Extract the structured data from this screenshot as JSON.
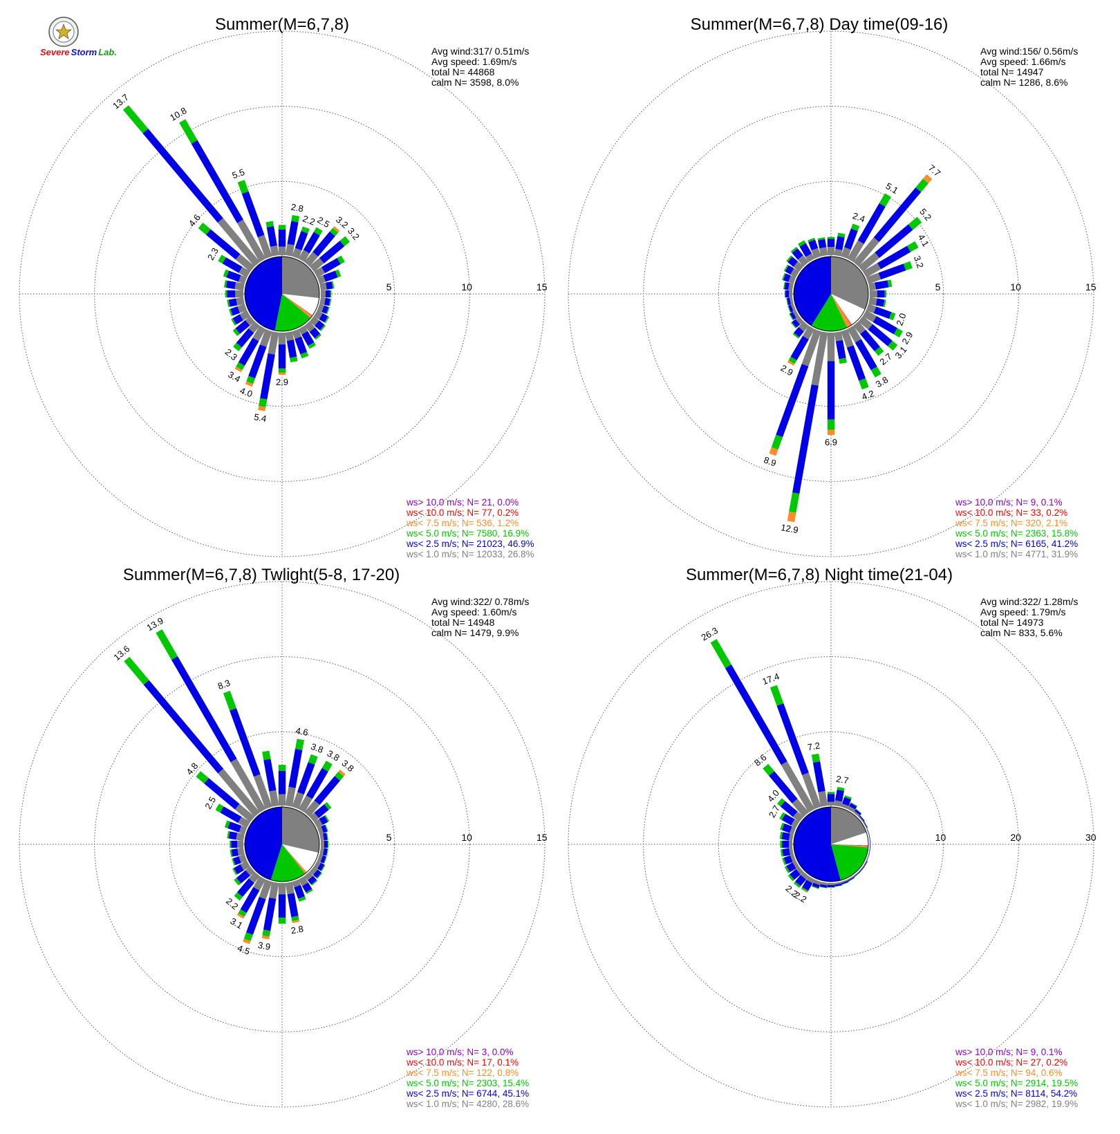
{
  "logo": {
    "word1": "Severe",
    "word2": "Storm",
    "word3": "Lab.",
    "color_red": "#e01010",
    "color_blue": "#1010d0",
    "color_green": "#1a9a1a"
  },
  "palette": {
    "purple": "#8a00c8",
    "red": "#ff0000",
    "orange": "#ff8c2a",
    "green": "#00c800",
    "blue": "#0000e6",
    "gray": "#808080"
  },
  "chart_data": [
    {
      "type": "wind-rose",
      "title": "Summer(M=6,7,8)",
      "rings": [
        5,
        10,
        15
      ],
      "ring_labels": [
        "5",
        "10",
        "15"
      ],
      "stats": [
        "Avg wind:317/ 0.51m/s",
        "Avg speed: 1.69m/s",
        "total N=       44868",
        "calm N=   3598,   8.0%"
      ],
      "pie": [
        {
          "class": "gray",
          "value": 26.8
        },
        {
          "class": "white",
          "value": 8.0
        },
        {
          "class": "purple",
          "value": 0.0
        },
        {
          "class": "red",
          "value": 0.2
        },
        {
          "class": "orange",
          "value": 1.2
        },
        {
          "class": "green",
          "value": 16.9
        },
        {
          "class": "blue",
          "value": 46.9
        }
      ],
      "bars": [
        {
          "dir": 0,
          "total": 2.1
        },
        {
          "dir": 10,
          "total": 2.8,
          "label": "2.8"
        },
        {
          "dir": 20,
          "total": 2.2,
          "label": "2.2"
        },
        {
          "dir": 30,
          "total": 2.5,
          "label": "2.5"
        },
        {
          "dir": 40,
          "total": 3.2,
          "label": "3.2"
        },
        {
          "dir": 50,
          "total": 3.2,
          "label": "3.2"
        },
        {
          "dir": 60,
          "total": 2.2
        },
        {
          "dir": 70,
          "total": 1.6
        },
        {
          "dir": 80,
          "total": 1.0
        },
        {
          "dir": 90,
          "total": 0.8
        },
        {
          "dir": 100,
          "total": 0.8
        },
        {
          "dir": 110,
          "total": 0.8
        },
        {
          "dir": 120,
          "total": 1.0
        },
        {
          "dir": 130,
          "total": 1.1
        },
        {
          "dir": 140,
          "total": 1.3
        },
        {
          "dir": 150,
          "total": 1.6
        },
        {
          "dir": 160,
          "total": 2.0
        },
        {
          "dir": 170,
          "total": 2.1
        },
        {
          "dir": 180,
          "total": 2.9,
          "label": "2.9"
        },
        {
          "dir": 190,
          "total": 5.4,
          "label": "5.4"
        },
        {
          "dir": 200,
          "total": 4.0,
          "label": "4.0"
        },
        {
          "dir": 210,
          "total": 3.4,
          "label": "3.4"
        },
        {
          "dir": 220,
          "total": 2.3,
          "label": "2.3"
        },
        {
          "dir": 230,
          "total": 1.6
        },
        {
          "dir": 240,
          "total": 1.3
        },
        {
          "dir": 250,
          "total": 1.2
        },
        {
          "dir": 260,
          "total": 1.2
        },
        {
          "dir": 270,
          "total": 1.3
        },
        {
          "dir": 280,
          "total": 1.4
        },
        {
          "dir": 290,
          "total": 1.6
        },
        {
          "dir": 300,
          "total": 2.3,
          "label": "2.3"
        },
        {
          "dir": 310,
          "total": 4.6,
          "label": "4.6"
        },
        {
          "dir": 320,
          "total": 13.7,
          "label": "13.7"
        },
        {
          "dir": 330,
          "total": 10.8,
          "label": "10.8"
        },
        {
          "dir": 340,
          "total": 5.5,
          "label": "5.5"
        },
        {
          "dir": 350,
          "total": 2.4
        }
      ],
      "legend": [
        {
          "color": "purple",
          "text": "ws> 10.0 m/s; N=    21,  0.0%"
        },
        {
          "color": "red",
          "text": "ws< 10.0 m/s; N=    77,  0.2%"
        },
        {
          "color": "orange",
          "text": "ws<  7.5 m/s; N=   536,  1.2%"
        },
        {
          "color": "green",
          "text": "ws<  5.0 m/s; N=  7580, 16.9%"
        },
        {
          "color": "blue",
          "text": "ws<  2.5 m/s; N= 21023, 46.9%"
        },
        {
          "color": "gray",
          "text": "ws<  1.0 m/s; N= 12033, 26.8%"
        }
      ]
    },
    {
      "type": "wind-rose",
      "title": "Summer(M=6,7,8) Day time(09-16)",
      "rings": [
        5,
        10,
        15
      ],
      "ring_labels": [
        "5",
        "10",
        "15"
      ],
      "stats": [
        "Avg wind:156/ 0.56m/s",
        "Avg speed: 1.66m/s",
        "total N=       14947",
        "calm N=   1286,   8.6%"
      ],
      "pie": [
        {
          "class": "gray",
          "value": 31.9
        },
        {
          "class": "white",
          "value": 8.6
        },
        {
          "class": "purple",
          "value": 0.1
        },
        {
          "class": "red",
          "value": 0.2
        },
        {
          "class": "orange",
          "value": 2.1
        },
        {
          "class": "green",
          "value": 15.8
        },
        {
          "class": "blue",
          "value": 41.2
        }
      ],
      "bars": [
        {
          "dir": 0,
          "total": 1.3
        },
        {
          "dir": 10,
          "total": 1.6
        },
        {
          "dir": 20,
          "total": 2.4,
          "label": "2.4"
        },
        {
          "dir": 30,
          "total": 5.1,
          "label": "5.1"
        },
        {
          "dir": 40,
          "total": 7.7,
          "label": "7.7"
        },
        {
          "dir": 50,
          "total": 5.2,
          "label": "5.2"
        },
        {
          "dir": 60,
          "total": 4.1,
          "label": "4.1"
        },
        {
          "dir": 70,
          "total": 3.2,
          "label": "3.2"
        },
        {
          "dir": 80,
          "total": 1.6
        },
        {
          "dir": 90,
          "total": 1.2
        },
        {
          "dir": 100,
          "total": 1.2
        },
        {
          "dir": 110,
          "total": 2.0,
          "label": "2.0"
        },
        {
          "dir": 120,
          "total": 2.9,
          "label": "2.9"
        },
        {
          "dir": 130,
          "total": 3.1,
          "label": "3.1"
        },
        {
          "dir": 140,
          "total": 2.7,
          "label": "2.7"
        },
        {
          "dir": 150,
          "total": 3.8,
          "label": "3.8"
        },
        {
          "dir": 160,
          "total": 4.2,
          "label": "4.2"
        },
        {
          "dir": 170,
          "total": 2.2
        },
        {
          "dir": 180,
          "total": 6.9,
          "label": "6.9"
        },
        {
          "dir": 190,
          "total": 12.9,
          "label": "12.9"
        },
        {
          "dir": 200,
          "total": 8.9,
          "label": "8.9"
        },
        {
          "dir": 210,
          "total": 2.9,
          "label": "2.9"
        },
        {
          "dir": 220,
          "total": 1.2
        },
        {
          "dir": 230,
          "total": 0.8
        },
        {
          "dir": 240,
          "total": 0.6
        },
        {
          "dir": 250,
          "total": 0.5
        },
        {
          "dir": 260,
          "total": 0.5
        },
        {
          "dir": 270,
          "total": 0.6
        },
        {
          "dir": 280,
          "total": 0.7
        },
        {
          "dir": 290,
          "total": 0.9
        },
        {
          "dir": 300,
          "total": 1.0
        },
        {
          "dir": 310,
          "total": 1.2
        },
        {
          "dir": 320,
          "total": 1.4
        },
        {
          "dir": 330,
          "total": 1.5
        },
        {
          "dir": 340,
          "total": 1.4
        },
        {
          "dir": 350,
          "total": 1.3
        }
      ],
      "legend": [
        {
          "color": "purple",
          "text": "ws> 10.0 m/s; N=     9,  0.1%"
        },
        {
          "color": "red",
          "text": "ws< 10.0 m/s; N=    33,  0.2%"
        },
        {
          "color": "orange",
          "text": "ws<  7.5 m/s; N=   320,  2.1%"
        },
        {
          "color": "green",
          "text": "ws<  5.0 m/s; N=  2363, 15.8%"
        },
        {
          "color": "blue",
          "text": "ws<  2.5 m/s; N=  6165, 41.2%"
        },
        {
          "color": "gray",
          "text": "ws<  1.0 m/s; N=  4771, 31.9%"
        }
      ]
    },
    {
      "type": "wind-rose",
      "title": "Summer(M=6,7,8) Twlight(5-8, 17-20)",
      "rings": [
        5,
        10,
        15
      ],
      "ring_labels": [
        "5",
        "10",
        "15"
      ],
      "stats": [
        "Avg wind:322/ 0.78m/s",
        "Avg speed: 1.60m/s",
        "total N=       14948",
        "calm N=   1479,   9.9%"
      ],
      "pie": [
        {
          "class": "gray",
          "value": 28.6
        },
        {
          "class": "white",
          "value": 9.9
        },
        {
          "class": "purple",
          "value": 0.0
        },
        {
          "class": "red",
          "value": 0.1
        },
        {
          "class": "orange",
          "value": 0.8
        },
        {
          "class": "green",
          "value": 15.4
        },
        {
          "class": "blue",
          "value": 45.1
        }
      ],
      "bars": [
        {
          "dir": 0,
          "total": 2.8
        },
        {
          "dir": 10,
          "total": 4.6,
          "label": "4.6"
        },
        {
          "dir": 20,
          "total": 3.8,
          "label": "3.8"
        },
        {
          "dir": 30,
          "total": 3.8,
          "label": "3.8"
        },
        {
          "dir": 40,
          "total": 3.8,
          "label": "3.8"
        },
        {
          "dir": 50,
          "total": 1.6
        },
        {
          "dir": 60,
          "total": 1.0
        },
        {
          "dir": 70,
          "total": 0.7
        },
        {
          "dir": 80,
          "total": 0.6
        },
        {
          "dir": 90,
          "total": 0.6
        },
        {
          "dir": 100,
          "total": 0.6
        },
        {
          "dir": 110,
          "total": 0.6
        },
        {
          "dir": 120,
          "total": 0.7
        },
        {
          "dir": 130,
          "total": 0.8
        },
        {
          "dir": 140,
          "total": 0.9
        },
        {
          "dir": 150,
          "total": 1.2
        },
        {
          "dir": 160,
          "total": 1.5
        },
        {
          "dir": 170,
          "total": 2.8,
          "label": "2.8"
        },
        {
          "dir": 180,
          "total": 2.8
        },
        {
          "dir": 190,
          "total": 3.9,
          "label": "3.9"
        },
        {
          "dir": 200,
          "total": 4.5,
          "label": "4.5"
        },
        {
          "dir": 210,
          "total": 3.1,
          "label": "3.1"
        },
        {
          "dir": 220,
          "total": 2.2,
          "label": "2.2"
        },
        {
          "dir": 230,
          "total": 1.5
        },
        {
          "dir": 240,
          "total": 1.2
        },
        {
          "dir": 250,
          "total": 1.0
        },
        {
          "dir": 260,
          "total": 1.0
        },
        {
          "dir": 270,
          "total": 1.0
        },
        {
          "dir": 280,
          "total": 1.2
        },
        {
          "dir": 290,
          "total": 1.5
        },
        {
          "dir": 300,
          "total": 2.5,
          "label": "2.5"
        },
        {
          "dir": 310,
          "total": 4.8,
          "label": "4.8"
        },
        {
          "dir": 320,
          "total": 13.6,
          "label": "13.6"
        },
        {
          "dir": 330,
          "total": 13.9,
          "label": "13.9"
        },
        {
          "dir": 340,
          "total": 8.3,
          "label": "8.3"
        },
        {
          "dir": 350,
          "total": 3.8
        }
      ],
      "legend": [
        {
          "color": "purple",
          "text": "ws> 10.0 m/s; N=     3,  0.0%"
        },
        {
          "color": "red",
          "text": "ws< 10.0 m/s; N=    17,  0.1%"
        },
        {
          "color": "orange",
          "text": "ws<  7.5 m/s; N=   122,  0.8%"
        },
        {
          "color": "green",
          "text": "ws<  5.0 m/s; N=  2303, 15.4%"
        },
        {
          "color": "blue",
          "text": "ws<  2.5 m/s; N=  6744, 45.1%"
        },
        {
          "color": "gray",
          "text": "ws<  1.0 m/s; N=  4280, 28.6%"
        }
      ]
    },
    {
      "type": "wind-rose",
      "title": "Summer(M=6,7,8) Night time(21-04)",
      "rings": [
        10,
        20,
        30
      ],
      "ring_labels": [
        "10",
        "20",
        "30"
      ],
      "stats": [
        "Avg wind:322/ 1.28m/s",
        "Avg speed: 1.79m/s",
        "total N=       14973",
        "calm N=    833,   5.6%"
      ],
      "pie": [
        {
          "class": "gray",
          "value": 19.9
        },
        {
          "class": "white",
          "value": 5.6
        },
        {
          "class": "purple",
          "value": 0.1
        },
        {
          "class": "red",
          "value": 0.2
        },
        {
          "class": "orange",
          "value": 0.6
        },
        {
          "class": "green",
          "value": 19.5
        },
        {
          "class": "blue",
          "value": 54.2
        }
      ],
      "bars": [
        {
          "dir": 0,
          "total": 2.0
        },
        {
          "dir": 10,
          "total": 2.7,
          "label": "2.7"
        },
        {
          "dir": 20,
          "total": 1.8
        },
        {
          "dir": 30,
          "total": 1.2
        },
        {
          "dir": 40,
          "total": 0.8
        },
        {
          "dir": 50,
          "total": 0.5
        },
        {
          "dir": 60,
          "total": 0.4
        },
        {
          "dir": 70,
          "total": 0.3
        },
        {
          "dir": 80,
          "total": 0.3
        },
        {
          "dir": 90,
          "total": 0.3
        },
        {
          "dir": 100,
          "total": 0.3
        },
        {
          "dir": 110,
          "total": 0.3
        },
        {
          "dir": 120,
          "total": 0.4
        },
        {
          "dir": 130,
          "total": 0.4
        },
        {
          "dir": 140,
          "total": 0.4
        },
        {
          "dir": 150,
          "total": 0.5
        },
        {
          "dir": 160,
          "total": 0.6
        },
        {
          "dir": 170,
          "total": 0.7
        },
        {
          "dir": 180,
          "total": 0.8
        },
        {
          "dir": 190,
          "total": 0.9
        },
        {
          "dir": 200,
          "total": 1.2
        },
        {
          "dir": 210,
          "total": 2.2,
          "label": "2.2"
        },
        {
          "dir": 220,
          "total": 2.2,
          "label": "2.2"
        },
        {
          "dir": 230,
          "total": 2.1
        },
        {
          "dir": 240,
          "total": 1.9
        },
        {
          "dir": 250,
          "total": 1.8
        },
        {
          "dir": 260,
          "total": 1.8
        },
        {
          "dir": 270,
          "total": 1.8
        },
        {
          "dir": 280,
          "total": 1.9
        },
        {
          "dir": 290,
          "total": 2.1
        },
        {
          "dir": 300,
          "total": 2.7,
          "label": "2.7"
        },
        {
          "dir": 310,
          "total": 4.0,
          "label": "4.0"
        },
        {
          "dir": 320,
          "total": 8.6,
          "label": "8.6"
        },
        {
          "dir": 330,
          "total": 26.3,
          "label": "26.3"
        },
        {
          "dir": 340,
          "total": 17.4,
          "label": "17.4"
        },
        {
          "dir": 350,
          "total": 7.2,
          "label": "7.2"
        }
      ],
      "legend": [
        {
          "color": "purple",
          "text": "ws> 10.0 m/s; N=     9,  0.1%"
        },
        {
          "color": "red",
          "text": "ws< 10.0 m/s; N=    27,  0.2%"
        },
        {
          "color": "orange",
          "text": "ws<  7.5 m/s; N=    94,  0.6%"
        },
        {
          "color": "green",
          "text": "ws<  5.0 m/s; N=  2914, 19.5%"
        },
        {
          "color": "blue",
          "text": "ws<  2.5 m/s; N=  8114, 54.2%"
        },
        {
          "color": "gray",
          "text": "ws<  1.0 m/s; N=  2982, 19.9%"
        }
      ]
    }
  ]
}
